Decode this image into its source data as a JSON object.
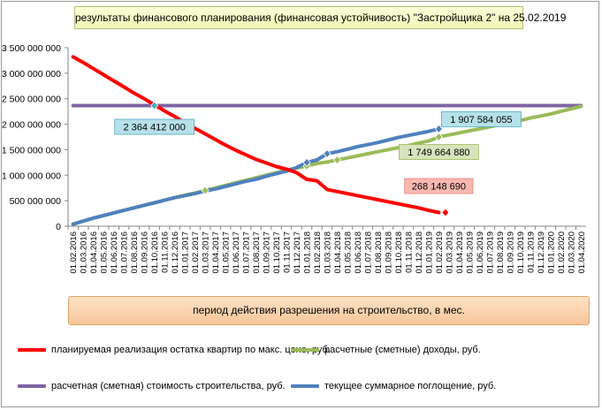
{
  "chart_data": {
    "type": "line",
    "title": "результаты финансового планирования (финансовая устойчивость) \"Застройщика  2\" на 25.02.2019",
    "xlabel": "период  действия разрешения на строительство, в мес.",
    "ylabel": "",
    "ylim": [
      0,
      3500000000
    ],
    "y_ticks": [
      "0",
      "500 000 000",
      "1 000 000 000",
      "1 500 000 000",
      "2 000 000 000",
      "2 500 000 000",
      "3 000 000 000",
      "3 500 000 000"
    ],
    "x": [
      "01.02.2016",
      "01.03.2016",
      "01.04.2016",
      "01.05.2016",
      "01.06.2016",
      "01.07.2016",
      "01.08.2016",
      "01.09.2016",
      "01.10.2016",
      "01.11.2016",
      "01.12.2016",
      "01.01.2017",
      "01.02.2017",
      "01.03.2017",
      "01.04.2017",
      "01.05.2017",
      "01.06.2017",
      "01.07.2017",
      "01.08.2017",
      "01.09.2017",
      "01.10.2017",
      "01.11.2017",
      "01.12.2017",
      "01.01.2018",
      "01.02.2018",
      "01.03.2018",
      "01.04.2018",
      "01.05.2018",
      "01.06.2018",
      "01.07.2018",
      "01.08.2018",
      "01.09.2018",
      "01.10.2018",
      "01.11.2018",
      "01.12.2018",
      "01.01.2019",
      "01.02.2019",
      "01.03.2019",
      "01.04.2019",
      "01.05.2019",
      "01.06.2019",
      "01.07.2019",
      "01.08.2019",
      "01.09.2019",
      "01.10.2019",
      "01.11.2019",
      "01.12.2019",
      "01.01.2020",
      "01.02.2020",
      "01.03.2020",
      "01.04.2020"
    ],
    "grid": false,
    "legend_position": "bottom",
    "series": [
      {
        "name": "планируемая реализация остатка квартир по макс. цене, руб.",
        "color": "#ff0000",
        "values": [
          3320000000,
          3210000000,
          3090000000,
          2970000000,
          2850000000,
          2730000000,
          2610000000,
          2500000000,
          2380000000,
          2260000000,
          2150000000,
          2030000000,
          1920000000,
          1810000000,
          1700000000,
          1590000000,
          1490000000,
          1400000000,
          1310000000,
          1240000000,
          1170000000,
          1120000000,
          1050000000,
          920000000,
          890000000,
          720000000,
          680000000,
          640000000,
          600000000,
          560000000,
          520000000,
          480000000,
          440000000,
          400000000,
          360000000,
          310000000,
          268148690,
          null,
          null,
          null,
          null,
          null,
          null,
          null,
          null,
          null,
          null,
          null,
          null,
          null,
          null
        ],
        "markers": [
          37
        ],
        "label_index": 36,
        "label": "268 148 690"
      },
      {
        "name": "расчетные (сметные) доходы, руб.",
        "color": "#9bbb59",
        "values": [
          40000000,
          100000000,
          160000000,
          210000000,
          260000000,
          310000000,
          360000000,
          410000000,
          460000000,
          510000000,
          560000000,
          610000000,
          650000000,
          700000000,
          750000000,
          800000000,
          850000000,
          900000000,
          950000000,
          1000000000,
          1050000000,
          1100000000,
          1140000000,
          1180000000,
          1230000000,
          1260000000,
          1300000000,
          1340000000,
          1380000000,
          1420000000,
          1460000000,
          1500000000,
          1540000000,
          1580000000,
          1630000000,
          1670000000,
          1749664880,
          1790000000,
          1830000000,
          1870000000,
          1910000000,
          1950000000,
          1990000000,
          2030000000,
          2070000000,
          2120000000,
          2160000000,
          2200000000,
          2250000000,
          2300000000,
          2350000000
        ],
        "markers": [
          13,
          23,
          26,
          36
        ],
        "label_index": 36,
        "label": "1 749 664 880"
      },
      {
        "name": "расчетная (сметная) стоимость строительства, руб.",
        "color": "#8064a2",
        "values": [
          2364412000,
          2364412000,
          2364412000,
          2364412000,
          2364412000,
          2364412000,
          2364412000,
          2364412000,
          2364412000,
          2364412000,
          2364412000,
          2364412000,
          2364412000,
          2364412000,
          2364412000,
          2364412000,
          2364412000,
          2364412000,
          2364412000,
          2364412000,
          2364412000,
          2364412000,
          2364412000,
          2364412000,
          2364412000,
          2364412000,
          2364412000,
          2364412000,
          2364412000,
          2364412000,
          2364412000,
          2364412000,
          2364412000,
          2364412000,
          2364412000,
          2364412000,
          2364412000,
          2364412000,
          2364412000,
          2364412000,
          2364412000,
          2364412000,
          2364412000,
          2364412000,
          2364412000,
          2364412000,
          2364412000,
          2364412000,
          2364412000,
          2364412000,
          2364412000
        ],
        "markers": [
          8
        ],
        "label_index": 8,
        "label": "2 364 412 000"
      },
      {
        "name": "текущее суммарное поглощение, руб.",
        "color": "#4f81bd",
        "values": [
          40000000,
          100000000,
          160000000,
          210000000,
          260000000,
          310000000,
          360000000,
          410000000,
          460000000,
          510000000,
          560000000,
          600000000,
          640000000,
          690000000,
          730000000,
          780000000,
          830000000,
          880000000,
          920000000,
          980000000,
          1030000000,
          1080000000,
          1150000000,
          1250000000,
          1300000000,
          1420000000,
          1460000000,
          1510000000,
          1560000000,
          1600000000,
          1640000000,
          1690000000,
          1740000000,
          1780000000,
          1820000000,
          1860000000,
          1907584055,
          null,
          null,
          null,
          null,
          null,
          null,
          null,
          null,
          null,
          null,
          null,
          null,
          null,
          null
        ],
        "markers": [
          23,
          25,
          36
        ],
        "label_index": 36,
        "label": "1 907 584 055"
      }
    ]
  }
}
